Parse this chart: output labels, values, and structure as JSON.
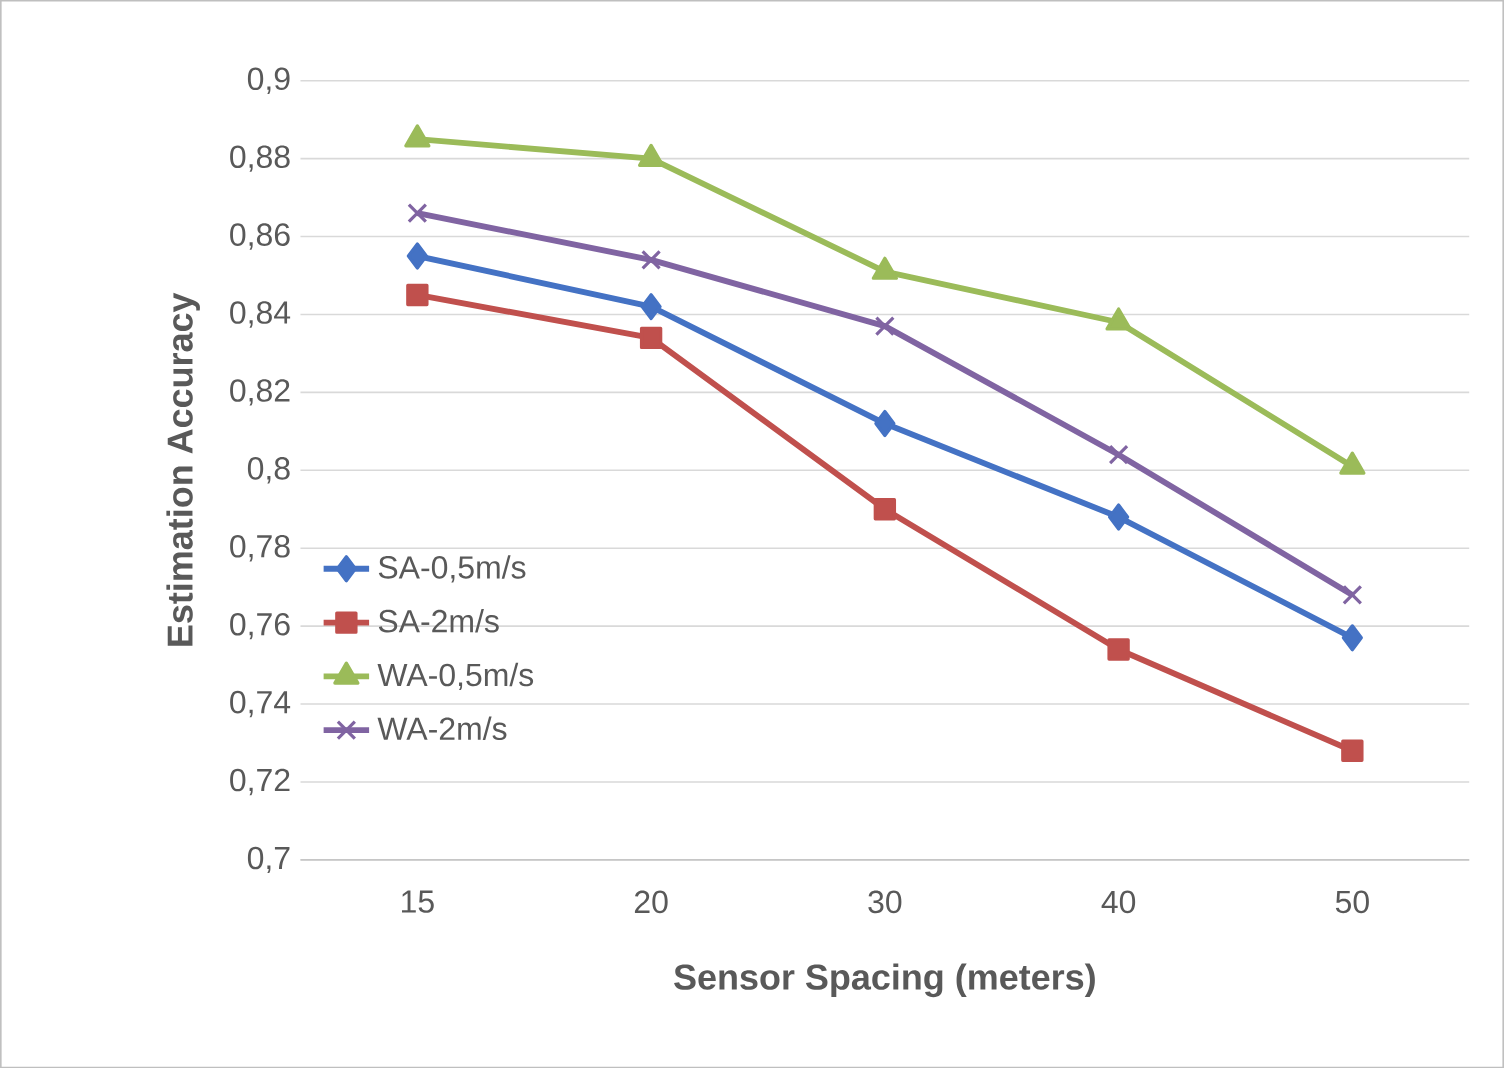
{
  "chart_data": {
    "type": "line",
    "xlabel": "Sensor Spacing (meters)",
    "ylabel": "Estimation Accuracy",
    "categories": [
      "15",
      "20",
      "30",
      "40",
      "50"
    ],
    "series": [
      {
        "name": "SA-0,5m/s",
        "color": "#4472c4",
        "marker": "diamond",
        "values": [
          0.855,
          0.842,
          0.812,
          0.788,
          0.757
        ]
      },
      {
        "name": "SA-2m/s",
        "color": "#c0504d",
        "marker": "square",
        "values": [
          0.845,
          0.834,
          0.79,
          0.754,
          0.728
        ]
      },
      {
        "name": "WA-0,5m/s",
        "color": "#9bbb59",
        "marker": "triangle",
        "values": [
          0.885,
          0.88,
          0.851,
          0.838,
          0.801
        ]
      },
      {
        "name": "WA-2m/s",
        "color": "#8064a2",
        "marker": "cross",
        "values": [
          0.866,
          0.854,
          0.837,
          0.804,
          0.768
        ]
      }
    ],
    "ylim": [
      0.7,
      0.9
    ],
    "yticks": [
      {
        "value": 0.7,
        "label": "0,7"
      },
      {
        "value": 0.72,
        "label": "0,72"
      },
      {
        "value": 0.74,
        "label": "0,74"
      },
      {
        "value": 0.76,
        "label": "0,76"
      },
      {
        "value": 0.78,
        "label": "0,78"
      },
      {
        "value": 0.8,
        "label": "0,8"
      },
      {
        "value": 0.82,
        "label": "0,82"
      },
      {
        "value": 0.84,
        "label": "0,84"
      },
      {
        "value": 0.86,
        "label": "0,86"
      },
      {
        "value": 0.88,
        "label": "0,88"
      },
      {
        "value": 0.9,
        "label": "0,9"
      }
    ],
    "grid": "y",
    "legend": "left",
    "line_style": "solid"
  }
}
